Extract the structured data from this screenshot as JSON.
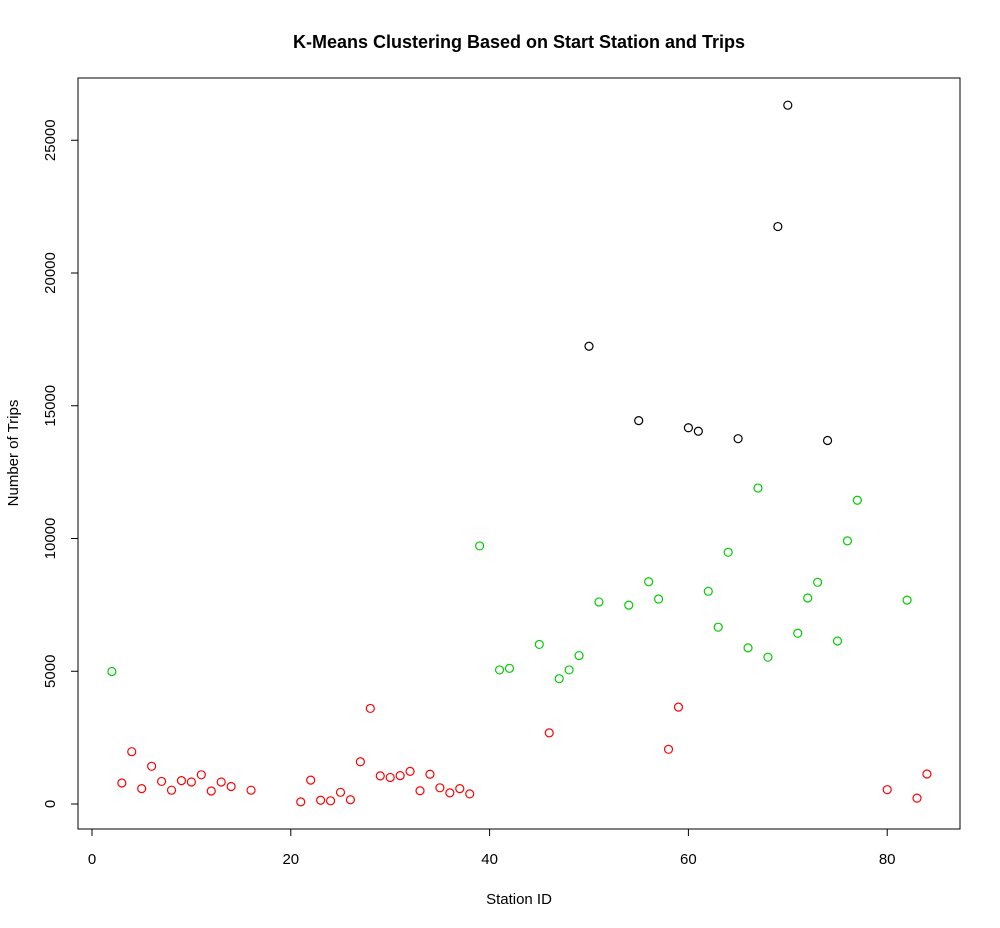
{
  "chart_data": {
    "type": "scatter",
    "title": "K-Means Clustering Based on Start Station and Trips",
    "xlabel": "Station ID",
    "ylabel": "Number of Trips",
    "xlim": [
      0,
      84
    ],
    "ylim": [
      0,
      26300
    ],
    "x_ticks": [
      0,
      20,
      40,
      60,
      80
    ],
    "y_ticks": [
      0,
      5000,
      10000,
      15000,
      20000,
      25000
    ],
    "grid": false,
    "legend": "none",
    "series": [
      {
        "color": "#ff0000",
        "points": [
          [
            3,
            790
          ],
          [
            4,
            1970
          ],
          [
            5,
            580
          ],
          [
            6,
            1420
          ],
          [
            7,
            850
          ],
          [
            8,
            520
          ],
          [
            9,
            880
          ],
          [
            10,
            830
          ],
          [
            11,
            1100
          ],
          [
            12,
            490
          ],
          [
            13,
            830
          ],
          [
            14,
            660
          ],
          [
            16,
            520
          ],
          [
            21,
            80
          ],
          [
            22,
            900
          ],
          [
            23,
            140
          ],
          [
            24,
            120
          ],
          [
            25,
            440
          ],
          [
            26,
            160
          ],
          [
            27,
            1590
          ],
          [
            28,
            3600
          ],
          [
            29,
            1060
          ],
          [
            30,
            1000
          ],
          [
            31,
            1070
          ],
          [
            32,
            1230
          ],
          [
            33,
            500
          ],
          [
            34,
            1120
          ],
          [
            35,
            610
          ],
          [
            36,
            420
          ],
          [
            37,
            580
          ],
          [
            38,
            380
          ],
          [
            46,
            2680
          ],
          [
            58,
            2060
          ],
          [
            59,
            3650
          ],
          [
            80,
            540
          ],
          [
            83,
            220
          ],
          [
            84,
            1130
          ]
        ]
      },
      {
        "color": "#00cc00",
        "points": [
          [
            2,
            4990
          ],
          [
            39,
            9720
          ],
          [
            41,
            5050
          ],
          [
            42,
            5110
          ],
          [
            45,
            6010
          ],
          [
            47,
            4720
          ],
          [
            48,
            5050
          ],
          [
            49,
            5590
          ],
          [
            51,
            7610
          ],
          [
            54,
            7490
          ],
          [
            56,
            8370
          ],
          [
            57,
            7720
          ],
          [
            62,
            8010
          ],
          [
            63,
            6660
          ],
          [
            64,
            9480
          ],
          [
            66,
            5880
          ],
          [
            67,
            11900
          ],
          [
            68,
            5530
          ],
          [
            71,
            6430
          ],
          [
            72,
            7760
          ],
          [
            73,
            8350
          ],
          [
            75,
            6140
          ],
          [
            76,
            9910
          ],
          [
            77,
            11440
          ],
          [
            82,
            7680
          ]
        ]
      },
      {
        "color": "#000000",
        "points": [
          [
            50,
            17240
          ],
          [
            55,
            14440
          ],
          [
            60,
            14170
          ],
          [
            61,
            14040
          ],
          [
            65,
            13760
          ],
          [
            69,
            21750
          ],
          [
            70,
            26320
          ],
          [
            74,
            13690
          ]
        ]
      }
    ]
  }
}
